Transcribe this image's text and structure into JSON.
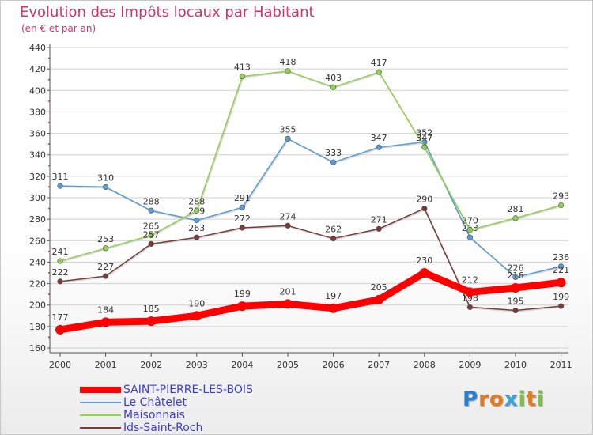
{
  "header": {
    "title": "Evolution des Impôts locaux par Habitant",
    "subtitle": "(en € et par an)"
  },
  "brand": {
    "text": "Proxiti",
    "letters": [
      "P",
      "r",
      "o",
      "x",
      "i",
      "t",
      "i"
    ]
  },
  "colors": {
    "title": "#d2346a",
    "gridline": "#d0d0d0",
    "axis": "#555555",
    "brand_letters": [
      "#2a7fd4",
      "#e87a1e",
      "#e87a1e",
      "#3aa3dd",
      "#7cc043",
      "#e87a1e",
      "#7cc043"
    ]
  },
  "chart_data": {
    "type": "line",
    "title": "Evolution des Impôts locaux par Habitant",
    "ylabel": "(en € et par an)",
    "xlabel": "",
    "x": [
      "2000",
      "2001",
      "2002",
      "2003",
      "2004",
      "2005",
      "2006",
      "2007",
      "2008",
      "2009",
      "2010",
      "2011"
    ],
    "ylim": [
      160,
      440
    ],
    "yticks": [
      160,
      180,
      200,
      220,
      240,
      260,
      280,
      300,
      320,
      340,
      360,
      380,
      400,
      420,
      440
    ],
    "grid": "horizontal",
    "legend": "bottom-left",
    "series": [
      {
        "name": "SAINT-PIERRE-LES-BOIS",
        "color": "#ff0000",
        "text_color": "#3d3dd6",
        "thick": true,
        "values": [
          177,
          184,
          185,
          190,
          199,
          201,
          197,
          205,
          230,
          212,
          216,
          221
        ],
        "labels": [
          "177",
          "184",
          "185",
          "190",
          "199",
          "201",
          "197",
          "205",
          "230",
          "212",
          "216",
          "221"
        ]
      },
      {
        "name": "Le Châtelet",
        "color": "#5b9bd5",
        "text_color": "#3d3dd6",
        "thick": false,
        "values": [
          311,
          310,
          288,
          279,
          291,
          355,
          333,
          347,
          352,
          263,
          226,
          236
        ],
        "labels": [
          "311",
          "310",
          "288",
          "279",
          "291",
          "355",
          "333",
          "347",
          "352",
          "263",
          "226",
          "236"
        ]
      },
      {
        "name": "Maisonnais",
        "color": "#92d050",
        "text_color": "#3d3dd6",
        "thick": false,
        "values": [
          241,
          253,
          265,
          288,
          413,
          418,
          403,
          417,
          347,
          270,
          281,
          293
        ],
        "labels": [
          "241",
          "253",
          "265",
          "288",
          "413",
          "418",
          "403",
          "417",
          "347",
          "270",
          "281",
          "293"
        ]
      },
      {
        "name": "Ids-Saint-Roch",
        "color": "#7b3a3a",
        "text_color": "#3d3dd6",
        "thick": false,
        "values": [
          222,
          227,
          257,
          263,
          272,
          274,
          262,
          271,
          290,
          198,
          195,
          199
        ],
        "labels": [
          "222",
          "227",
          "257",
          "263",
          "272",
          "274",
          "262",
          "271",
          "290",
          "198",
          "195",
          "199"
        ]
      }
    ]
  }
}
